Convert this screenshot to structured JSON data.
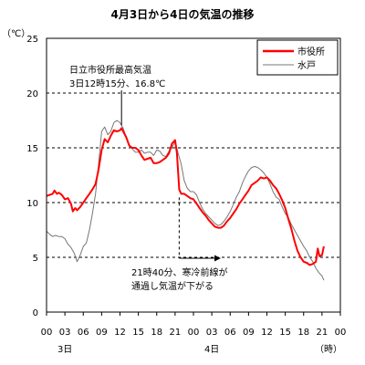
{
  "chart_data": {
    "type": "line",
    "title": "4月3日から4日の気温の推移",
    "ylabel": "（℃）",
    "xlabel": "（時）",
    "ylim": [
      0,
      25
    ],
    "yticks": [
      0,
      5,
      10,
      15,
      20,
      25
    ],
    "xlim": [
      0,
      48
    ],
    "xticks": [
      0,
      3,
      6,
      9,
      12,
      15,
      18,
      21,
      24,
      27,
      30,
      33,
      36,
      39,
      42,
      45,
      48
    ],
    "xtick_labels": [
      "00",
      "03",
      "06",
      "09",
      "12",
      "15",
      "18",
      "21",
      "00",
      "03",
      "06",
      "09",
      "12",
      "15",
      "18",
      "21",
      "00"
    ],
    "day_labels": [
      {
        "x": 3,
        "text": "3日"
      },
      {
        "x": 27,
        "text": "4日"
      }
    ],
    "grid": "horizontal-dashed",
    "legend_position": "top-right",
    "series": [
      {
        "name": "市役所",
        "color": "#ff0000",
        "points": [
          [
            0,
            10.6
          ],
          [
            0.5,
            10.7
          ],
          [
            1,
            10.8
          ],
          [
            1.3,
            11.1
          ],
          [
            1.7,
            10.8
          ],
          [
            2,
            10.9
          ],
          [
            2.5,
            10.7
          ],
          [
            3,
            10.3
          ],
          [
            3.5,
            10.4
          ],
          [
            4,
            9.9
          ],
          [
            4.3,
            9.2
          ],
          [
            4.7,
            9.5
          ],
          [
            5,
            9.3
          ],
          [
            5.5,
            9.6
          ],
          [
            6,
            10.0
          ],
          [
            6.5,
            10.4
          ],
          [
            7,
            10.8
          ],
          [
            7.5,
            11.2
          ],
          [
            8,
            11.7
          ],
          [
            8.5,
            13.0
          ],
          [
            9,
            14.8
          ],
          [
            9.5,
            15.8
          ],
          [
            10,
            15.5
          ],
          [
            10.5,
            16.1
          ],
          [
            11,
            16.6
          ],
          [
            11.5,
            16.5
          ],
          [
            12,
            16.6
          ],
          [
            12.25,
            16.8
          ],
          [
            12.5,
            16.5
          ],
          [
            13,
            16.0
          ],
          [
            13.5,
            15.2
          ],
          [
            14,
            15.0
          ],
          [
            14.5,
            15.0
          ],
          [
            15,
            14.8
          ],
          [
            15.5,
            14.3
          ],
          [
            16,
            13.9
          ],
          [
            16.5,
            14.0
          ],
          [
            17,
            14.1
          ],
          [
            17.5,
            13.6
          ],
          [
            18,
            13.6
          ],
          [
            18.5,
            13.7
          ],
          [
            19,
            13.9
          ],
          [
            19.5,
            14.1
          ],
          [
            20,
            14.5
          ],
          [
            20.5,
            15.4
          ],
          [
            21,
            15.7
          ],
          [
            21.3,
            14.5
          ],
          [
            21.67,
            11.2
          ],
          [
            22,
            10.8
          ],
          [
            22.5,
            10.8
          ],
          [
            23,
            10.6
          ],
          [
            23.5,
            10.4
          ],
          [
            24,
            10.3
          ],
          [
            24.5,
            9.9
          ],
          [
            25,
            9.5
          ],
          [
            25.5,
            9.1
          ],
          [
            26,
            8.8
          ],
          [
            26.5,
            8.4
          ],
          [
            27,
            8.1
          ],
          [
            27.5,
            7.8
          ],
          [
            28,
            7.7
          ],
          [
            28.5,
            7.7
          ],
          [
            29,
            7.9
          ],
          [
            29.5,
            8.3
          ],
          [
            30,
            8.6
          ],
          [
            30.5,
            9.0
          ],
          [
            31,
            9.4
          ],
          [
            31.5,
            9.9
          ],
          [
            32,
            10.3
          ],
          [
            32.5,
            10.7
          ],
          [
            33,
            11.1
          ],
          [
            33.5,
            11.6
          ],
          [
            34,
            11.8
          ],
          [
            34.5,
            12.0
          ],
          [
            35,
            12.3
          ],
          [
            35.5,
            12.2
          ],
          [
            36,
            12.3
          ],
          [
            36.5,
            12.0
          ],
          [
            37,
            11.6
          ],
          [
            37.5,
            11.3
          ],
          [
            38,
            10.8
          ],
          [
            38.5,
            10.2
          ],
          [
            39,
            9.5
          ],
          [
            39.5,
            8.5
          ],
          [
            40,
            7.6
          ],
          [
            40.5,
            6.5
          ],
          [
            41,
            5.6
          ],
          [
            41.5,
            5.0
          ],
          [
            42,
            4.6
          ],
          [
            42.5,
            4.5
          ],
          [
            43,
            4.3
          ],
          [
            43.5,
            4.4
          ],
          [
            44,
            4.6
          ],
          [
            44.3,
            5.8
          ],
          [
            44.6,
            5.1
          ],
          [
            45,
            5.2
          ],
          [
            45.3,
            6.0
          ]
        ]
      },
      {
        "name": "水戸",
        "color": "#777777",
        "points": [
          [
            0,
            7.4
          ],
          [
            0.5,
            7.1
          ],
          [
            1,
            6.9
          ],
          [
            1.5,
            7.0
          ],
          [
            2,
            6.9
          ],
          [
            2.5,
            6.9
          ],
          [
            3,
            6.7
          ],
          [
            3.5,
            6.2
          ],
          [
            4,
            5.9
          ],
          [
            4.5,
            5.4
          ],
          [
            5,
            4.6
          ],
          [
            5.5,
            5.2
          ],
          [
            6,
            6.0
          ],
          [
            6.5,
            6.3
          ],
          [
            7,
            7.5
          ],
          [
            7.5,
            9.0
          ],
          [
            8,
            10.8
          ],
          [
            8.5,
            13.5
          ],
          [
            9,
            16.5
          ],
          [
            9.5,
            16.9
          ],
          [
            10,
            16.2
          ],
          [
            10.5,
            16.5
          ],
          [
            11,
            17.3
          ],
          [
            11.5,
            17.5
          ],
          [
            12,
            17.3
          ],
          [
            12.5,
            16.8
          ],
          [
            13,
            16.0
          ],
          [
            13.5,
            15.3
          ],
          [
            14,
            14.9
          ],
          [
            14.5,
            14.6
          ],
          [
            15,
            14.6
          ],
          [
            15.5,
            14.8
          ],
          [
            16,
            14.5
          ],
          [
            16.5,
            14.6
          ],
          [
            17,
            14.6
          ],
          [
            17.5,
            14.3
          ],
          [
            18,
            14.8
          ],
          [
            18.5,
            14.7
          ],
          [
            19,
            14.3
          ],
          [
            19.5,
            14.2
          ],
          [
            20,
            14.7
          ],
          [
            20.5,
            15.0
          ],
          [
            21,
            15.6
          ],
          [
            21.5,
            14.5
          ],
          [
            22,
            13.5
          ],
          [
            22.5,
            12.0
          ],
          [
            23,
            11.3
          ],
          [
            23.5,
            11.0
          ],
          [
            24,
            11.0
          ],
          [
            24.5,
            10.7
          ],
          [
            25,
            10.0
          ],
          [
            25.5,
            9.4
          ],
          [
            26,
            9.0
          ],
          [
            26.5,
            8.7
          ],
          [
            27,
            8.4
          ],
          [
            27.5,
            8.1
          ],
          [
            28,
            7.9
          ],
          [
            28.5,
            8.0
          ],
          [
            29,
            8.3
          ],
          [
            29.5,
            8.7
          ],
          [
            30,
            9.2
          ],
          [
            30.5,
            9.8
          ],
          [
            31,
            10.5
          ],
          [
            31.5,
            11.0
          ],
          [
            32,
            11.8
          ],
          [
            32.5,
            12.4
          ],
          [
            33,
            12.9
          ],
          [
            33.5,
            13.2
          ],
          [
            34,
            13.3
          ],
          [
            34.5,
            13.2
          ],
          [
            35,
            13.0
          ],
          [
            35.5,
            12.7
          ],
          [
            36,
            12.3
          ],
          [
            36.5,
            11.7
          ],
          [
            37,
            11.0
          ],
          [
            37.5,
            10.5
          ],
          [
            38,
            10.3
          ],
          [
            38.5,
            9.6
          ],
          [
            39,
            9.0
          ],
          [
            39.5,
            8.6
          ],
          [
            40,
            8.0
          ],
          [
            40.5,
            7.5
          ],
          [
            41,
            7.0
          ],
          [
            41.5,
            6.5
          ],
          [
            42,
            6.0
          ],
          [
            42.5,
            5.6
          ],
          [
            43,
            5.0
          ],
          [
            43.5,
            4.6
          ],
          [
            44,
            4.0
          ],
          [
            44.5,
            3.6
          ],
          [
            45,
            3.3
          ],
          [
            45.3,
            2.9
          ]
        ]
      }
    ],
    "annotations": [
      {
        "lines": [
          "日立市役所最高気温",
          "3日12時15分、16.8℃"
        ],
        "target_x": 12.25,
        "target_y": 16.8
      },
      {
        "lines": [
          "21時40分、寒冷前線が",
          "通過し気温が下がる"
        ],
        "target_x": 21.67
      }
    ]
  }
}
